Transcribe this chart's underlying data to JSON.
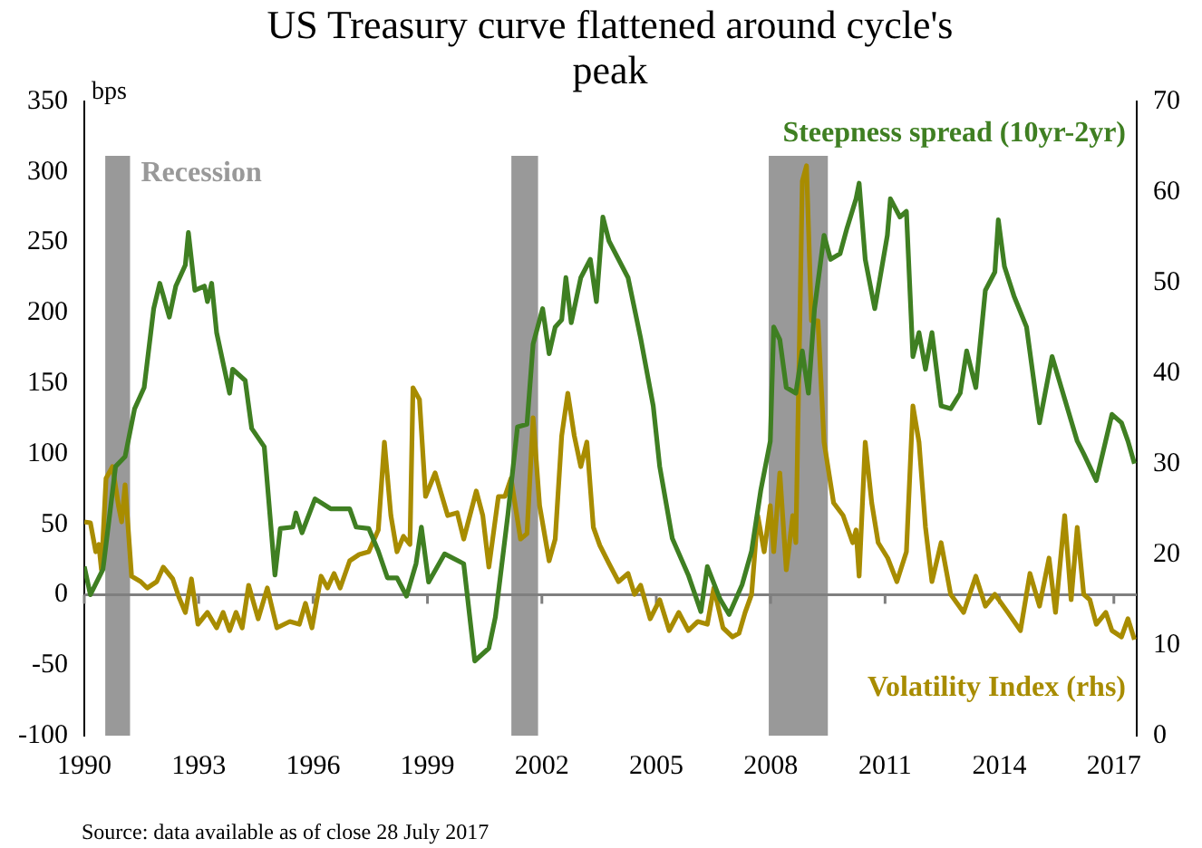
{
  "chart_data": {
    "type": "line",
    "title": "US Treasury curve flattened around cycle's peak",
    "ylabel": "bps",
    "xlim": [
      1990,
      2017.6
    ],
    "xticks": [
      1990,
      1993,
      1996,
      1999,
      2002,
      2005,
      2008,
      2011,
      2014,
      2017
    ],
    "ylim": [
      -100,
      350
    ],
    "yticks": [
      -100,
      -50,
      0,
      50,
      100,
      150,
      200,
      250,
      300,
      350
    ],
    "y2lim": [
      0,
      70
    ],
    "y2ticks": [
      0,
      10,
      20,
      30,
      40,
      50,
      60,
      70
    ],
    "grid": false,
    "marker": "none",
    "legend": false,
    "series": [
      {
        "name": "Steepness spread (10yr-2yr)",
        "color": "#3f7f22",
        "x": [
          1990.0,
          1990.16,
          1990.49,
          1990.82,
          1991.07,
          1991.32,
          1991.57,
          1991.82,
          1991.98,
          1992.23,
          1992.4,
          1992.65,
          1992.73,
          1992.9,
          1993.15,
          1993.23,
          1993.34,
          1993.47,
          1993.81,
          1993.89,
          1994.22,
          1994.39,
          1994.72,
          1995.0,
          1995.14,
          1995.47,
          1995.55,
          1995.71,
          1996.05,
          1996.46,
          1996.96,
          1997.13,
          1997.46,
          1997.71,
          1997.95,
          1998.2,
          1998.45,
          1998.7,
          1998.84,
          1999.03,
          1999.45,
          1999.95,
          2000.24,
          2000.61,
          2000.78,
          2001.11,
          2001.36,
          2001.61,
          2001.77,
          2002.02,
          2002.19,
          2002.35,
          2002.52,
          2002.63,
          2002.77,
          2003.02,
          2003.27,
          2003.43,
          2003.6,
          2003.76,
          2004.01,
          2004.26,
          2004.59,
          2004.92,
          2005.09,
          2005.42,
          2005.84,
          2006.17,
          2006.34,
          2006.67,
          2006.91,
          2007.25,
          2007.5,
          2007.74,
          2007.99,
          2008.08,
          2008.24,
          2008.41,
          2008.66,
          2008.83,
          2008.99,
          2009.15,
          2009.4,
          2009.57,
          2009.82,
          2009.99,
          2010.24,
          2010.32,
          2010.48,
          2010.73,
          2011.06,
          2011.14,
          2011.39,
          2011.56,
          2011.73,
          2011.89,
          2012.06,
          2012.23,
          2012.47,
          2012.72,
          2012.97,
          2013.14,
          2013.38,
          2013.63,
          2013.88,
          2013.97,
          2014.13,
          2014.38,
          2014.71,
          2015.05,
          2015.38,
          2015.71,
          2016.04,
          2016.21,
          2016.54,
          2016.95,
          2017.2,
          2017.37,
          2017.54
        ],
        "values": [
          20,
          0,
          18,
          91,
          98,
          132,
          147,
          203,
          221,
          197,
          219,
          234,
          257,
          216,
          219,
          208,
          221,
          186,
          143,
          160,
          152,
          118,
          105,
          14,
          47,
          48,
          58,
          44,
          68,
          61,
          61,
          48,
          47,
          31,
          12,
          12,
          -1,
          22,
          48,
          9,
          29,
          22,
          -47,
          -38,
          -16,
          57,
          119,
          121,
          178,
          203,
          171,
          190,
          195,
          225,
          193,
          225,
          238,
          208,
          268,
          251,
          238,
          225,
          182,
          134,
          91,
          40,
          14,
          -12,
          20,
          -3,
          -14,
          7,
          31,
          74,
          109,
          190,
          181,
          147,
          143,
          173,
          143,
          203,
          255,
          238,
          242,
          259,
          281,
          292,
          238,
          203,
          255,
          281,
          268,
          272,
          169,
          186,
          160,
          186,
          134,
          132,
          143,
          173,
          147,
          216,
          229,
          266,
          233,
          212,
          190,
          122,
          169,
          139,
          109,
          100,
          81,
          128,
          122,
          109,
          93
        ]
      },
      {
        "name": "Volatility Index (rhs)",
        "color": "#a88c00",
        "axis": "y2",
        "x": [
          1990.0,
          1990.16,
          1990.3,
          1990.38,
          1990.45,
          1990.57,
          1990.74,
          1990.9,
          1990.98,
          1991.07,
          1991.24,
          1991.48,
          1991.65,
          1991.9,
          1992.07,
          1992.32,
          1992.48,
          1992.65,
          1992.81,
          1992.98,
          1993.23,
          1993.47,
          1993.64,
          1993.81,
          1993.98,
          1994.14,
          1994.31,
          1994.56,
          1994.8,
          1995.05,
          1995.39,
          1995.64,
          1995.8,
          1995.97,
          1996.21,
          1996.38,
          1996.55,
          1996.71,
          1996.96,
          1997.21,
          1997.46,
          1997.71,
          1997.87,
          1998.04,
          1998.2,
          1998.37,
          1998.54,
          1998.62,
          1998.79,
          1998.95,
          1999.2,
          1999.53,
          1999.78,
          1999.95,
          2000.28,
          2000.45,
          2000.61,
          2000.86,
          2001.03,
          2001.19,
          2001.44,
          2001.61,
          2001.77,
          2001.94,
          2002.19,
          2002.35,
          2002.52,
          2002.68,
          2002.85,
          2003.02,
          2003.18,
          2003.35,
          2003.52,
          2003.76,
          2004.01,
          2004.26,
          2004.43,
          2004.59,
          2004.84,
          2005.09,
          2005.34,
          2005.59,
          2005.84,
          2006.09,
          2006.34,
          2006.51,
          2006.75,
          2007.0,
          2007.17,
          2007.33,
          2007.5,
          2007.66,
          2007.83,
          2007.99,
          2008.08,
          2008.24,
          2008.41,
          2008.58,
          2008.66,
          2008.83,
          2008.94,
          2009.07,
          2009.24,
          2009.4,
          2009.65,
          2009.9,
          2010.15,
          2010.24,
          2010.32,
          2010.48,
          2010.65,
          2010.82,
          2011.07,
          2011.31,
          2011.56,
          2011.73,
          2011.89,
          2012.06,
          2012.23,
          2012.47,
          2012.72,
          2013.06,
          2013.38,
          2013.63,
          2013.88,
          2014.22,
          2014.55,
          2014.8,
          2015.05,
          2015.3,
          2015.47,
          2015.71,
          2015.88,
          2016.04,
          2016.21,
          2016.37,
          2016.54,
          2016.79,
          2016.95,
          2017.2,
          2017.37,
          2017.54
        ],
        "values": [
          23.6,
          23.5,
          20.3,
          21.1,
          18.3,
          28.4,
          29.7,
          25.3,
          23.6,
          27.7,
          17.6,
          17.0,
          16.3,
          17.0,
          18.6,
          17.3,
          15.3,
          13.6,
          17.3,
          12.3,
          13.6,
          11.9,
          13.6,
          11.6,
          13.6,
          11.9,
          16.6,
          12.9,
          16.3,
          11.9,
          12.6,
          12.3,
          14.6,
          11.9,
          17.6,
          16.3,
          17.9,
          16.3,
          19.3,
          20.0,
          20.3,
          22.7,
          32.4,
          24.3,
          20.3,
          22.0,
          21.1,
          38.4,
          37.1,
          26.4,
          29.0,
          24.3,
          24.6,
          21.7,
          27.0,
          24.3,
          18.6,
          26.4,
          26.4,
          28.4,
          21.7,
          22.3,
          35.1,
          25.4,
          19.3,
          21.7,
          33.1,
          37.8,
          33.1,
          29.7,
          32.4,
          23.0,
          21.0,
          19.0,
          17.0,
          17.9,
          15.6,
          16.6,
          12.9,
          15.0,
          11.6,
          13.6,
          11.6,
          12.6,
          12.3,
          16.3,
          11.9,
          10.9,
          11.3,
          13.6,
          15.6,
          24.3,
          20.3,
          25.4,
          20.3,
          29.0,
          18.3,
          24.3,
          21.3,
          61.2,
          62.9,
          45.8,
          45.8,
          32.4,
          25.7,
          24.3,
          21.3,
          22.7,
          17.6,
          32.4,
          25.7,
          21.3,
          19.6,
          17.0,
          20.3,
          36.4,
          32.4,
          23.0,
          17.0,
          21.3,
          15.6,
          13.6,
          17.6,
          14.3,
          15.6,
          13.6,
          11.6,
          17.9,
          14.3,
          19.6,
          13.6,
          24.3,
          15.0,
          23.0,
          15.6,
          15.0,
          12.3,
          13.6,
          11.6,
          10.9,
          12.9,
          10.6
        ]
      }
    ],
    "bands": [
      {
        "axis": "x",
        "from": 1990.55,
        "to": 1991.2,
        "label": "Recession",
        "color": "#999999"
      },
      {
        "axis": "x",
        "from": 2001.2,
        "to": 2001.9,
        "color": "#999999"
      },
      {
        "axis": "x",
        "from": 2007.95,
        "to": 2009.5,
        "color": "#999999"
      }
    ],
    "ref_lines": [
      {
        "axis": "y",
        "value": 0,
        "color": "#7f7f7f"
      }
    ],
    "annotations": [
      "Source: data available as of close 28 July 2017"
    ]
  }
}
